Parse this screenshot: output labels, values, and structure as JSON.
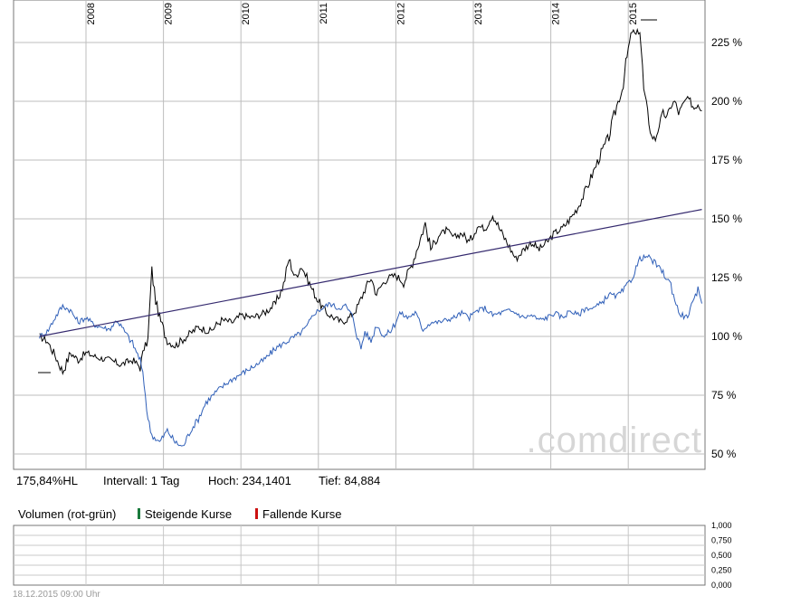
{
  "chart_data": [
    {
      "type": "line",
      "title": "",
      "x_tick_labels": [
        "2008",
        "2009",
        "2010",
        "2011",
        "2012",
        "2013",
        "2014",
        "2015"
      ],
      "y_tick_labels": [
        "50 %",
        "75 %",
        "100 %",
        "125 %",
        "150 %",
        "175 %",
        "200 %",
        "225 %"
      ],
      "ylim": [
        43,
        250
      ],
      "x_range": [
        2007.4,
        2015.95
      ],
      "grid": true,
      "series": [
        {
          "color": "#000000",
          "x": [
            2007.4,
            2007.5,
            2007.6,
            2007.7,
            2007.8,
            2007.9,
            2008.0,
            2008.15,
            2008.3,
            2008.45,
            2008.6,
            2008.7,
            2008.75,
            2008.8,
            2008.85,
            2008.9,
            2008.95,
            2009.05,
            2009.15,
            2009.3,
            2009.45,
            2009.6,
            2009.75,
            2009.9,
            2010.0,
            2010.15,
            2010.3,
            2010.45,
            2010.55,
            2010.62,
            2010.7,
            2010.78,
            2010.85,
            2010.92,
            2011.0,
            2011.1,
            2011.2,
            2011.3,
            2011.4,
            2011.5,
            2011.6,
            2011.68,
            2011.75,
            2011.82,
            2011.9,
            2012.0,
            2012.1,
            2012.2,
            2012.3,
            2012.38,
            2012.45,
            2012.55,
            2012.65,
            2012.75,
            2012.85,
            2012.95,
            2013.05,
            2013.15,
            2013.25,
            2013.35,
            2013.45,
            2013.55,
            2013.65,
            2013.75,
            2013.85,
            2013.95,
            2014.05,
            2014.15,
            2014.25,
            2014.35,
            2014.45,
            2014.55,
            2014.65,
            2014.75,
            2014.85,
            2014.92,
            2015.0,
            2015.05,
            2015.1,
            2015.15,
            2015.2,
            2015.25,
            2015.3,
            2015.35,
            2015.4,
            2015.45,
            2015.5,
            2015.55,
            2015.6,
            2015.65,
            2015.7,
            2015.75,
            2015.8,
            2015.85,
            2015.9,
            2015.95
          ],
          "values": [
            100,
            98,
            92,
            85,
            93,
            90,
            93,
            91,
            90,
            88,
            90,
            87,
            95,
            98,
            128,
            115,
            108,
            98,
            96,
            100,
            104,
            102,
            107,
            106,
            109,
            108,
            110,
            114,
            122,
            133,
            125,
            130,
            125,
            120,
            115,
            110,
            108,
            106,
            108,
            112,
            120,
            125,
            118,
            122,
            125,
            126,
            123,
            130,
            140,
            148,
            137,
            143,
            145,
            142,
            144,
            140,
            147,
            146,
            152,
            145,
            139,
            133,
            137,
            140,
            137,
            140,
            144,
            146,
            150,
            155,
            162,
            170,
            178,
            185,
            198,
            205,
            222,
            230,
            228,
            231,
            205,
            195,
            185,
            184,
            190,
            195,
            193,
            198,
            200,
            195,
            198,
            201,
            200,
            197,
            199,
            196
          ]
        },
        {
          "color": "#2f5fb8",
          "x": [
            2007.4,
            2007.5,
            2007.6,
            2007.7,
            2007.8,
            2007.9,
            2008.0,
            2008.1,
            2008.2,
            2008.3,
            2008.4,
            2008.5,
            2008.6,
            2008.7,
            2008.75,
            2008.8,
            2008.85,
            2008.95,
            2009.05,
            2009.15,
            2009.25,
            2009.35,
            2009.45,
            2009.55,
            2009.7,
            2009.85,
            2010.0,
            2010.15,
            2010.3,
            2010.45,
            2010.6,
            2010.75,
            2010.85,
            2010.95,
            2011.05,
            2011.15,
            2011.25,
            2011.35,
            2011.45,
            2011.5,
            2011.55,
            2011.6,
            2011.68,
            2011.75,
            2011.85,
            2011.95,
            2012.05,
            2012.15,
            2012.25,
            2012.35,
            2012.45,
            2012.55,
            2012.65,
            2012.75,
            2012.85,
            2012.95,
            2013.05,
            2013.15,
            2013.25,
            2013.35,
            2013.45,
            2013.55,
            2013.65,
            2013.75,
            2013.85,
            2013.95,
            2014.05,
            2014.15,
            2014.25,
            2014.35,
            2014.45,
            2014.55,
            2014.65,
            2014.75,
            2014.85,
            2014.95,
            2015.05,
            2015.15,
            2015.25,
            2015.35,
            2015.45,
            2015.55,
            2015.65,
            2015.75,
            2015.85,
            2015.9,
            2015.95
          ],
          "values": [
            100,
            102,
            108,
            113,
            111,
            106,
            108,
            105,
            104,
            103,
            107,
            102,
            97,
            90,
            80,
            65,
            58,
            55,
            60,
            55,
            53,
            60,
            65,
            72,
            77,
            81,
            84,
            87,
            90,
            95,
            98,
            101,
            104,
            110,
            112,
            114,
            112,
            113,
            108,
            100,
            95,
            102,
            98,
            105,
            100,
            103,
            110,
            108,
            110,
            103,
            106,
            106,
            107,
            108,
            110,
            108,
            111,
            112,
            109,
            110,
            111,
            110,
            108,
            109,
            107,
            108,
            110,
            108,
            111,
            109,
            112,
            112,
            114,
            118,
            117,
            120,
            125,
            133,
            134,
            131,
            127,
            122,
            110,
            108,
            115,
            120,
            114
          ]
        },
        {
          "color": "#34296e",
          "x": [
            2007.4,
            2015.95
          ],
          "values": [
            100,
            154
          ]
        }
      ]
    },
    {
      "type": "bar",
      "title": "",
      "y_tick_labels": [
        "1,000",
        "0,750",
        "0,500",
        "0,250",
        "0,000"
      ],
      "ylim": [
        0,
        1
      ],
      "grid": true,
      "values": []
    }
  ],
  "info": {
    "hl": "175,84%HL",
    "interval": "Intervall: 1 Tag",
    "high": "Hoch: 234,1401",
    "low": "Tief:  84,884"
  },
  "volume_legend": {
    "title": "Volumen (rot-grün)",
    "rising": "Steigende Kurse",
    "rising_color": "#1a7a3c",
    "falling": "Fallende Kurse",
    "falling_color": "#cc1111"
  },
  "watermark": ".comdirect",
  "footer": "18.12.2015 09:00 Uhr"
}
